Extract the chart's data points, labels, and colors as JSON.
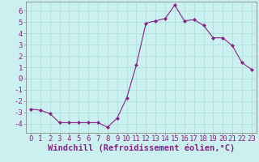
{
  "x": [
    0,
    1,
    2,
    3,
    4,
    5,
    6,
    7,
    8,
    9,
    10,
    11,
    12,
    13,
    14,
    15,
    16,
    17,
    18,
    19,
    20,
    21,
    22,
    23
  ],
  "y": [
    -2.7,
    -2.8,
    -3.1,
    -3.9,
    -3.9,
    -3.9,
    -3.9,
    -3.9,
    -4.3,
    -3.5,
    -1.7,
    1.2,
    4.9,
    5.1,
    5.3,
    6.5,
    5.1,
    5.2,
    4.7,
    3.6,
    3.6,
    2.9,
    1.4,
    0.8
  ],
  "line_color": "#882288",
  "marker": "D",
  "marker_size": 2.5,
  "bg_color": "#cbf0f0",
  "grid_color": "#aadddd",
  "xlabel": "Windchill (Refroidissement éolien,°C)",
  "ylabel": "",
  "xlim": [
    -0.5,
    23.5
  ],
  "ylim": [
    -4.8,
    6.8
  ],
  "yticks": [
    -4,
    -3,
    -2,
    -1,
    0,
    1,
    2,
    3,
    4,
    5,
    6
  ],
  "xticks": [
    0,
    1,
    2,
    3,
    4,
    5,
    6,
    7,
    8,
    9,
    10,
    11,
    12,
    13,
    14,
    15,
    16,
    17,
    18,
    19,
    20,
    21,
    22,
    23
  ],
  "tick_label_size": 6.5,
  "xlabel_size": 7.5,
  "spine_color": "#888888",
  "axis_color": "#444444"
}
